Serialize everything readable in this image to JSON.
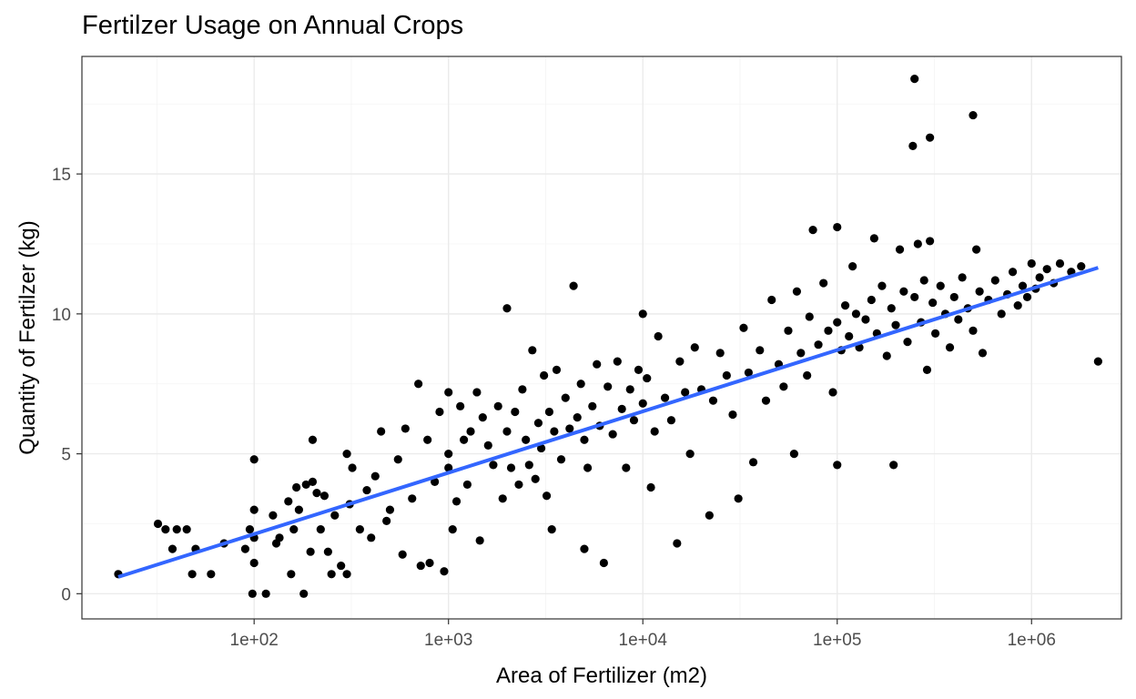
{
  "chart_data": {
    "type": "scatter",
    "title": "Fertilzer Usage on Annual Crops",
    "xlabel": "Area of Fertilizer (m2)",
    "ylabel": "Quantity of Fertilzer (kg)",
    "x_scale": "log10",
    "xlim": [
      13,
      2900000
    ],
    "ylim": [
      -0.9,
      19.2
    ],
    "x_ticks": [
      100,
      1000,
      10000,
      100000,
      1000000
    ],
    "x_tick_labels": [
      "1e+02",
      "1e+03",
      "1e+04",
      "1e+05",
      "1e+06"
    ],
    "y_ticks": [
      0,
      5,
      10,
      15
    ],
    "y_tick_labels": [
      "0",
      "5",
      "10",
      "15"
    ],
    "grid": true,
    "legend": "none",
    "point_color": "#000000",
    "series": [
      {
        "type": "scatter",
        "note_points": "representative sample of a dense point cloud; approximate values",
        "points": [
          [
            20,
            0.7
          ],
          [
            32,
            2.5
          ],
          [
            35,
            2.3
          ],
          [
            40,
            2.3
          ],
          [
            45,
            2.3
          ],
          [
            38,
            1.6
          ],
          [
            48,
            0.7
          ],
          [
            50,
            1.6
          ],
          [
            60,
            0.7
          ],
          [
            70,
            1.8
          ],
          [
            90,
            1.6
          ],
          [
            95,
            2.3
          ],
          [
            98,
            0.0
          ],
          [
            100,
            1.1
          ],
          [
            100,
            4.8
          ],
          [
            100,
            2.0
          ],
          [
            100,
            3.0
          ],
          [
            115,
            0.0
          ],
          [
            125,
            2.8
          ],
          [
            130,
            1.8
          ],
          [
            135,
            2.0
          ],
          [
            150,
            3.3
          ],
          [
            155,
            0.7
          ],
          [
            160,
            2.3
          ],
          [
            165,
            3.8
          ],
          [
            170,
            3.0
          ],
          [
            180,
            0.0
          ],
          [
            185,
            3.9
          ],
          [
            195,
            1.5
          ],
          [
            200,
            4.0
          ],
          [
            200,
            5.5
          ],
          [
            210,
            3.6
          ],
          [
            220,
            2.3
          ],
          [
            230,
            3.5
          ],
          [
            240,
            1.5
          ],
          [
            250,
            0.7
          ],
          [
            260,
            2.8
          ],
          [
            280,
            1.0
          ],
          [
            300,
            5.0
          ],
          [
            300,
            0.7
          ],
          [
            310,
            3.2
          ],
          [
            320,
            4.5
          ],
          [
            350,
            2.3
          ],
          [
            380,
            3.7
          ],
          [
            400,
            2.0
          ],
          [
            420,
            4.2
          ],
          [
            450,
            5.8
          ],
          [
            480,
            2.6
          ],
          [
            500,
            3.0
          ],
          [
            550,
            4.8
          ],
          [
            580,
            1.4
          ],
          [
            600,
            5.9
          ],
          [
            650,
            3.4
          ],
          [
            700,
            7.5
          ],
          [
            720,
            1.0
          ],
          [
            780,
            5.5
          ],
          [
            800,
            1.1
          ],
          [
            850,
            4.0
          ],
          [
            900,
            6.5
          ],
          [
            950,
            0.8
          ],
          [
            1000,
            7.2
          ],
          [
            1000,
            5.0
          ],
          [
            1000,
            4.5
          ],
          [
            1050,
            2.3
          ],
          [
            1100,
            3.3
          ],
          [
            1150,
            6.7
          ],
          [
            1200,
            5.5
          ],
          [
            1250,
            3.9
          ],
          [
            1300,
            5.8
          ],
          [
            1400,
            7.2
          ],
          [
            1450,
            1.9
          ],
          [
            1500,
            6.3
          ],
          [
            1600,
            5.3
          ],
          [
            1700,
            4.6
          ],
          [
            1800,
            6.7
          ],
          [
            1900,
            3.4
          ],
          [
            2000,
            5.8
          ],
          [
            2000,
            10.2
          ],
          [
            2100,
            4.5
          ],
          [
            2200,
            6.5
          ],
          [
            2300,
            3.9
          ],
          [
            2400,
            7.3
          ],
          [
            2500,
            5.5
          ],
          [
            2600,
            4.6
          ],
          [
            2700,
            8.7
          ],
          [
            2800,
            4.1
          ],
          [
            2900,
            6.1
          ],
          [
            3000,
            5.2
          ],
          [
            3100,
            7.8
          ],
          [
            3200,
            3.5
          ],
          [
            3300,
            6.5
          ],
          [
            3400,
            2.3
          ],
          [
            3500,
            5.8
          ],
          [
            3600,
            8.0
          ],
          [
            3800,
            4.8
          ],
          [
            4000,
            7.0
          ],
          [
            4200,
            5.9
          ],
          [
            4400,
            11.0
          ],
          [
            4600,
            6.3
          ],
          [
            4800,
            7.5
          ],
          [
            5000,
            1.6
          ],
          [
            5000,
            5.5
          ],
          [
            5200,
            4.5
          ],
          [
            5500,
            6.7
          ],
          [
            5800,
            8.2
          ],
          [
            6000,
            6.0
          ],
          [
            6300,
            1.1
          ],
          [
            6600,
            7.4
          ],
          [
            7000,
            5.7
          ],
          [
            7400,
            8.3
          ],
          [
            7800,
            6.6
          ],
          [
            8200,
            4.5
          ],
          [
            8600,
            7.3
          ],
          [
            9000,
            6.2
          ],
          [
            9500,
            8.0
          ],
          [
            10000,
            6.8
          ],
          [
            10000,
            10.0
          ],
          [
            10500,
            7.7
          ],
          [
            11000,
            3.8
          ],
          [
            11500,
            5.8
          ],
          [
            12000,
            9.2
          ],
          [
            13000,
            7.0
          ],
          [
            14000,
            6.2
          ],
          [
            15000,
            1.8
          ],
          [
            15500,
            8.3
          ],
          [
            16500,
            7.2
          ],
          [
            17500,
            5.0
          ],
          [
            18500,
            8.8
          ],
          [
            20000,
            7.3
          ],
          [
            22000,
            2.8
          ],
          [
            23000,
            6.9
          ],
          [
            25000,
            8.6
          ],
          [
            27000,
            7.8
          ],
          [
            29000,
            6.4
          ],
          [
            31000,
            3.4
          ],
          [
            33000,
            9.5
          ],
          [
            35000,
            7.9
          ],
          [
            37000,
            4.7
          ],
          [
            40000,
            8.7
          ],
          [
            43000,
            6.9
          ],
          [
            46000,
            10.5
          ],
          [
            50000,
            8.2
          ],
          [
            53000,
            7.4
          ],
          [
            56000,
            9.4
          ],
          [
            60000,
            5.0
          ],
          [
            62000,
            10.8
          ],
          [
            65000,
            8.6
          ],
          [
            70000,
            7.8
          ],
          [
            72000,
            9.9
          ],
          [
            75000,
            13.0
          ],
          [
            80000,
            8.9
          ],
          [
            85000,
            11.1
          ],
          [
            90000,
            9.4
          ],
          [
            95000,
            7.2
          ],
          [
            100000,
            9.7
          ],
          [
            100000,
            13.1
          ],
          [
            100000,
            4.6
          ],
          [
            105000,
            8.7
          ],
          [
            110000,
            10.3
          ],
          [
            115000,
            9.2
          ],
          [
            120000,
            11.7
          ],
          [
            125000,
            10.0
          ],
          [
            130000,
            8.8
          ],
          [
            140000,
            9.8
          ],
          [
            150000,
            10.5
          ],
          [
            155000,
            12.7
          ],
          [
            160000,
            9.3
          ],
          [
            170000,
            11.0
          ],
          [
            180000,
            8.5
          ],
          [
            190000,
            10.2
          ],
          [
            195000,
            4.6
          ],
          [
            200000,
            9.6
          ],
          [
            210000,
            12.3
          ],
          [
            220000,
            10.8
          ],
          [
            230000,
            9.0
          ],
          [
            245000,
            16.0
          ],
          [
            250000,
            18.4
          ],
          [
            250000,
            10.6
          ],
          [
            260000,
            12.5
          ],
          [
            270000,
            9.7
          ],
          [
            280000,
            11.2
          ],
          [
            290000,
            8.0
          ],
          [
            300000,
            16.3
          ],
          [
            300000,
            12.6
          ],
          [
            310000,
            10.4
          ],
          [
            320000,
            9.3
          ],
          [
            340000,
            11.0
          ],
          [
            360000,
            10.0
          ],
          [
            380000,
            8.8
          ],
          [
            400000,
            10.6
          ],
          [
            420000,
            9.8
          ],
          [
            440000,
            11.3
          ],
          [
            470000,
            10.2
          ],
          [
            500000,
            17.1
          ],
          [
            500000,
            9.4
          ],
          [
            520000,
            12.3
          ],
          [
            540000,
            10.8
          ],
          [
            560000,
            8.6
          ],
          [
            600000,
            10.5
          ],
          [
            650000,
            11.2
          ],
          [
            700000,
            10.0
          ],
          [
            750000,
            10.7
          ],
          [
            800000,
            11.5
          ],
          [
            850000,
            10.3
          ],
          [
            900000,
            11.0
          ],
          [
            950000,
            10.6
          ],
          [
            1000000,
            11.8
          ],
          [
            1050000,
            10.9
          ],
          [
            1100000,
            11.3
          ],
          [
            1200000,
            11.6
          ],
          [
            1300000,
            11.1
          ],
          [
            1400000,
            11.8
          ],
          [
            1600000,
            11.5
          ],
          [
            1800000,
            11.7
          ],
          [
            2200000,
            8.3
          ]
        ]
      },
      {
        "type": "line",
        "color": "#3366ff",
        "points": [
          [
            20,
            0.6
          ],
          [
            2200000,
            11.65
          ]
        ]
      }
    ]
  }
}
